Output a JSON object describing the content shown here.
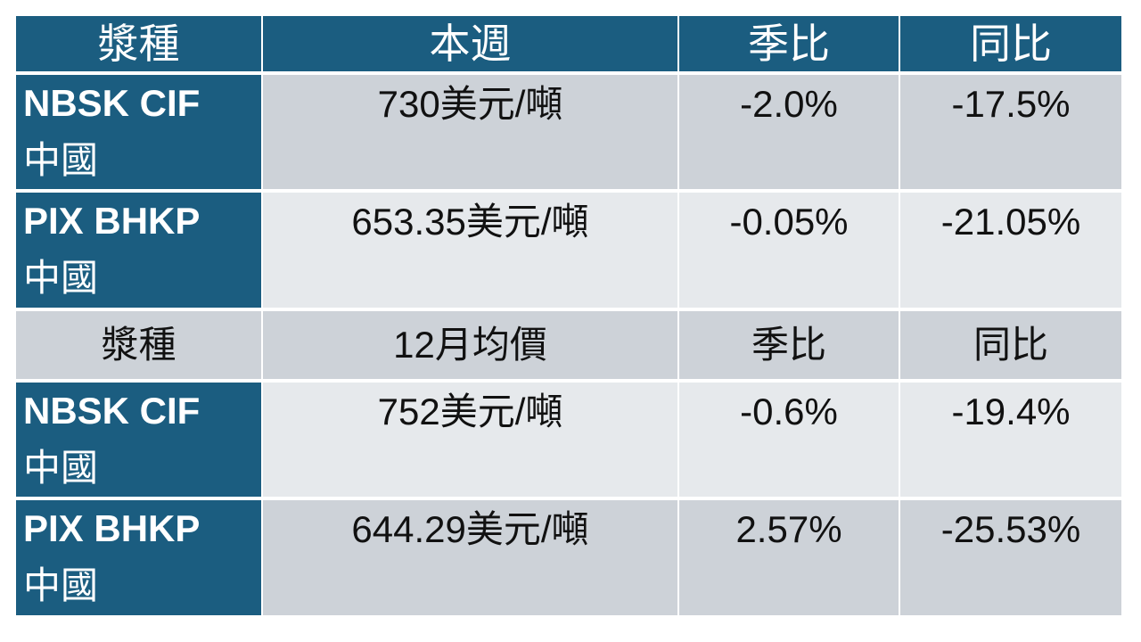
{
  "table": {
    "header": [
      "漿種",
      "本週",
      "季比",
      "同比"
    ],
    "rows": [
      {
        "label": "NBSK CIF",
        "region": "中國",
        "cells": [
          "730美元/噸",
          "-2.0%",
          "-17.5%"
        ]
      },
      {
        "label": "PIX BHKP",
        "region": "中國",
        "cells": [
          "653.35美元/噸",
          "-0.05%",
          "-21.05%"
        ]
      },
      {
        "cells": [
          "漿種",
          "12月均價",
          "季比",
          "同比"
        ]
      },
      {
        "label": "NBSK CIF",
        "region": "中國",
        "cells": [
          "752美元/噸",
          "-0.6%",
          "-19.4%"
        ]
      },
      {
        "label": "PIX BHKP",
        "region": "中國",
        "cells": [
          "644.29美元/噸",
          "2.57%",
          "-25.53%"
        ]
      }
    ]
  }
}
